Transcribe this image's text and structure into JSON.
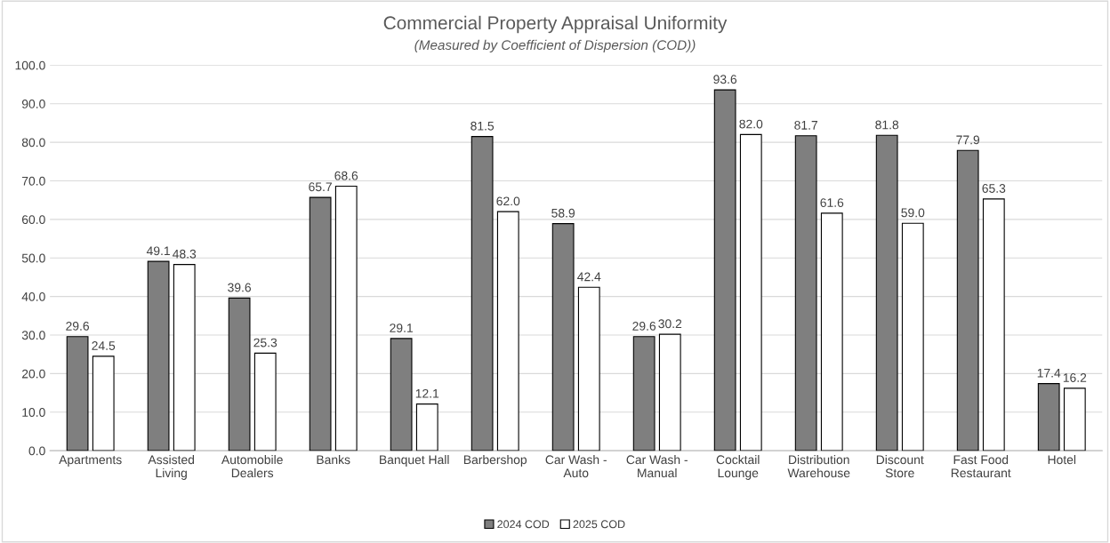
{
  "chart_data": {
    "type": "bar",
    "title": "Commercial Property Appraisal Uniformity",
    "subtitle": "(Measured by Coefficient of Dispersion (COD))",
    "categories": [
      "Apartments",
      "Assisted\nLiving",
      "Automobile\nDealers",
      "Banks",
      "Banquet Hall",
      "Barbershop",
      "Car Wash -\nAuto",
      "Car Wash -\nManual",
      "Cocktail\nLounge",
      "Distribution\nWarehouse",
      "Discount\nStore",
      "Fast Food\nRestaurant",
      "Hotel"
    ],
    "series": [
      {
        "name": "2024 COD",
        "color": "#7f7f7f",
        "values": [
          29.6,
          49.1,
          39.6,
          65.7,
          29.1,
          81.5,
          58.9,
          29.6,
          93.6,
          81.7,
          81.8,
          77.9,
          17.4
        ],
        "value_labels": [
          "29.6",
          "49.1",
          "39.6",
          "65.7",
          "29.1",
          "81.5",
          "58.9",
          "29.6",
          "93.6",
          "81.7",
          "81.8",
          "77.9",
          "17.4"
        ]
      },
      {
        "name": "2025 COD",
        "color": "#ffffff",
        "values": [
          24.5,
          48.3,
          25.3,
          68.6,
          12.1,
          62.0,
          42.4,
          30.2,
          82.0,
          61.6,
          59.0,
          65.3,
          16.2
        ],
        "value_labels": [
          "24.5",
          "48.3",
          "25.3",
          "68.6",
          "12.1",
          "62.0",
          "42.4",
          "30.2",
          "82.0",
          "61.6",
          "59.0",
          "65.3",
          "16.2"
        ]
      }
    ],
    "ylim": [
      0,
      100
    ],
    "yticks": [
      {
        "value": 0,
        "label": "0.0"
      },
      {
        "value": 10,
        "label": "10.0"
      },
      {
        "value": 20,
        "label": "20.0"
      },
      {
        "value": 30,
        "label": "30.0"
      },
      {
        "value": 40,
        "label": "40.0"
      },
      {
        "value": 50,
        "label": "50.0"
      },
      {
        "value": 60,
        "label": "60.0"
      },
      {
        "value": 70,
        "label": "70.0"
      },
      {
        "value": 80,
        "label": "80.0"
      },
      {
        "value": 90,
        "label": "90.0"
      },
      {
        "value": 100,
        "label": "100.0"
      }
    ],
    "grid": "y",
    "legend": "bottom"
  }
}
